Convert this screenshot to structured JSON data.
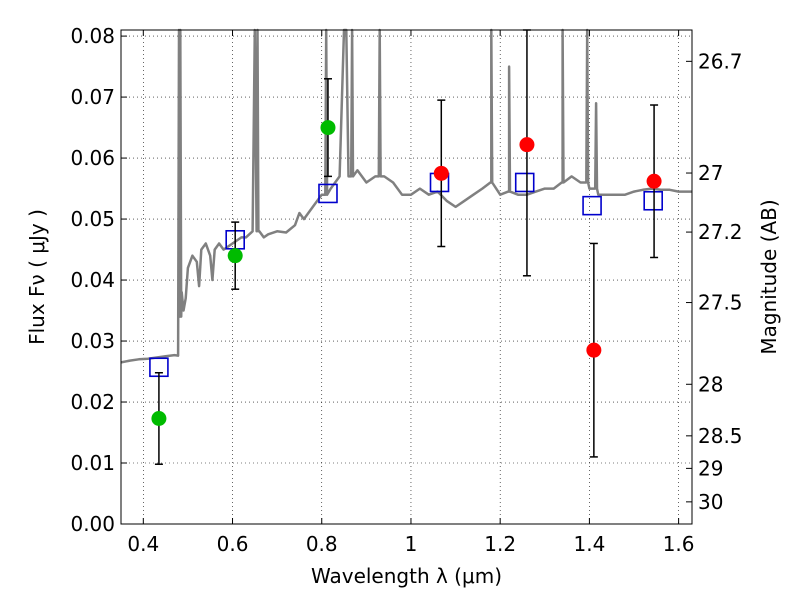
{
  "chart_data": {
    "type": "scatter",
    "xlabel": "Wavelength  λ (μm)",
    "ylabel": "Flux  Fν  ( μJy )",
    "ylabel_right": "Magnitude (AB)",
    "xlim": [
      0.35,
      1.63
    ],
    "ylim": [
      0.0,
      0.081
    ],
    "grid": true,
    "x_ticks": [
      {
        "value": 0.4,
        "label": "0.4"
      },
      {
        "value": 0.6,
        "label": "0.6"
      },
      {
        "value": 0.8,
        "label": "0.8"
      },
      {
        "value": 1.0,
        "label": "1"
      },
      {
        "value": 1.2,
        "label": "1.2"
      },
      {
        "value": 1.4,
        "label": "1.4"
      },
      {
        "value": 1.6,
        "label": "1.6"
      }
    ],
    "y_ticks": [
      {
        "value": 0.0,
        "label": "0.00"
      },
      {
        "value": 0.01,
        "label": "0.01"
      },
      {
        "value": 0.02,
        "label": "0.02"
      },
      {
        "value": 0.03,
        "label": "0.03"
      },
      {
        "value": 0.04,
        "label": "0.04"
      },
      {
        "value": 0.05,
        "label": "0.05"
      },
      {
        "value": 0.06,
        "label": "0.06"
      },
      {
        "value": 0.07,
        "label": "0.07"
      },
      {
        "value": 0.08,
        "label": "0.08"
      }
    ],
    "right_ticks": [
      {
        "magnitude": 26.7,
        "label": "26.7"
      },
      {
        "magnitude": 27.0,
        "label": "27"
      },
      {
        "magnitude": 27.2,
        "label": "27.2"
      },
      {
        "magnitude": 27.5,
        "label": "27.5"
      },
      {
        "magnitude": 28.0,
        "label": "28"
      },
      {
        "magnitude": 28.5,
        "label": "28.5"
      },
      {
        "magnitude": 29.0,
        "label": "29"
      },
      {
        "magnitude": 30.0,
        "label": "30"
      }
    ],
    "series": [
      {
        "kind": "line",
        "color": "#808080",
        "x": [
          0.35,
          0.37,
          0.39,
          0.41,
          0.43,
          0.45,
          0.47,
          0.478,
          0.48,
          0.483,
          0.486,
          0.49,
          0.495,
          0.5,
          0.51,
          0.52,
          0.525,
          0.53,
          0.54,
          0.55,
          0.555,
          0.56,
          0.57,
          0.58,
          0.6,
          0.62,
          0.63,
          0.645,
          0.65,
          0.655,
          0.66,
          0.67,
          0.68,
          0.7,
          0.72,
          0.74,
          0.75,
          0.76,
          0.78,
          0.8,
          0.82,
          0.84,
          0.85,
          0.86,
          0.88,
          0.9,
          0.92,
          0.94,
          0.96,
          0.98,
          1.0,
          1.02,
          1.04,
          1.06,
          1.08,
          1.1,
          1.12,
          1.14,
          1.16,
          1.18,
          1.2,
          1.22,
          1.24,
          1.26,
          1.28,
          1.3,
          1.32,
          1.34,
          1.36,
          1.38,
          1.4,
          1.42,
          1.44,
          1.46,
          1.48,
          1.5,
          1.52,
          1.54,
          1.56,
          1.58,
          1.6,
          1.63
        ],
        "values": [
          0.0265,
          0.0268,
          0.027,
          0.0271,
          0.0273,
          0.0275,
          0.0277,
          0.0276,
          0.081,
          0.034,
          0.038,
          0.035,
          0.037,
          0.042,
          0.044,
          0.043,
          0.039,
          0.045,
          0.046,
          0.044,
          0.04,
          0.045,
          0.046,
          0.045,
          0.046,
          0.047,
          0.047,
          0.048,
          0.081,
          0.048,
          0.048,
          0.047,
          0.0475,
          0.048,
          0.0478,
          0.049,
          0.051,
          0.05,
          0.052,
          0.054,
          0.055,
          0.057,
          0.081,
          0.057,
          0.058,
          0.056,
          0.057,
          0.057,
          0.056,
          0.054,
          0.054,
          0.055,
          0.054,
          0.0545,
          0.053,
          0.052,
          0.053,
          0.054,
          0.055,
          0.056,
          0.054,
          0.0545,
          0.054,
          0.054,
          0.0545,
          0.055,
          0.055,
          0.056,
          0.057,
          0.056,
          0.055,
          0.054,
          0.054,
          0.054,
          0.054,
          0.0545,
          0.0548,
          0.055,
          0.0548,
          0.0548,
          0.0545,
          0.0545
        ],
        "spikes": [
          [
            0.483,
            0.081
          ],
          [
            0.656,
            0.081
          ],
          [
            0.81,
            0.081
          ],
          [
            0.853,
            0.081
          ],
          [
            0.868,
            0.081
          ],
          [
            0.93,
            0.081
          ],
          [
            1.18,
            0.081
          ],
          [
            1.22,
            0.075
          ],
          [
            1.34,
            0.081
          ],
          [
            1.395,
            0.081
          ],
          [
            1.415,
            0.069
          ]
        ]
      },
      {
        "kind": "square",
        "color": "#0000cc",
        "x": [
          0.435,
          0.606,
          0.814,
          1.064,
          1.255,
          1.406,
          1.543
        ],
        "values": [
          0.0257,
          0.0466,
          0.0542,
          0.056,
          0.056,
          0.0522,
          0.053
        ]
      },
      {
        "kind": "point",
        "color": "#00bb00",
        "x": [
          0.435,
          0.606,
          0.814
        ],
        "values": [
          0.0173,
          0.044,
          0.065
        ],
        "err": [
          0.0075,
          0.0055,
          0.008
        ]
      },
      {
        "kind": "point",
        "color": "#ff0000",
        "x": [
          1.068,
          1.26,
          1.41,
          1.545
        ],
        "values": [
          0.0575,
          0.0622,
          0.0285,
          0.0562
        ],
        "err": [
          0.012,
          0.0215,
          0.0175,
          0.0125
        ]
      }
    ]
  }
}
